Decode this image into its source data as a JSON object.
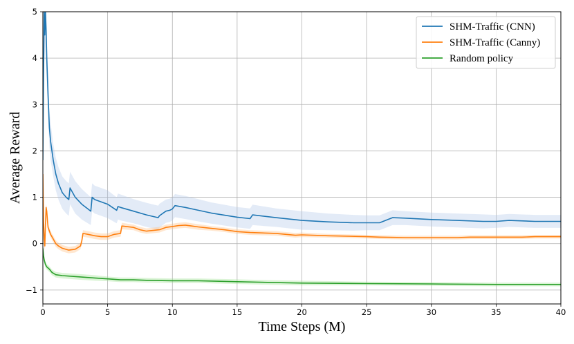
{
  "chart_data": {
    "type": "line",
    "title": "",
    "xlabel": "Time Steps (M)",
    "ylabel": "Average Reward",
    "xlim": [
      0,
      40
    ],
    "ylim": [
      -1.3,
      5
    ],
    "xticks": [
      0,
      5,
      10,
      15,
      20,
      25,
      30,
      35,
      40
    ],
    "yticks": [
      -1,
      0,
      1,
      2,
      3,
      4,
      5
    ],
    "grid": true,
    "legend_position": "top-right",
    "series": [
      {
        "name": "SHM-Traffic (CNN)",
        "color": "#1f77b4",
        "band_color": "#aec7e8",
        "x": [
          0.0,
          0.05,
          0.1,
          0.15,
          0.2,
          0.25,
          0.3,
          0.4,
          0.5,
          0.6,
          0.8,
          1.0,
          1.2,
          1.5,
          1.8,
          2.0,
          2.1,
          2.5,
          3.0,
          3.7,
          3.8,
          4.0,
          5.0,
          5.7,
          5.8,
          6.0,
          7.0,
          8.0,
          8.9,
          9.0,
          9.5,
          9.8,
          10.0,
          10.2,
          11.0,
          12.0,
          13.0,
          15.0,
          16.0,
          16.2,
          18.0,
          20.0,
          22.0,
          24.0,
          25.0,
          26.0,
          27.0,
          28.0,
          30.0,
          32.0,
          34.0,
          35.0,
          36.0,
          38.0,
          40.0
        ],
        "y": [
          1.8,
          3.5,
          5.0,
          4.5,
          5.0,
          4.6,
          4.0,
          3.2,
          2.5,
          2.2,
          1.8,
          1.5,
          1.3,
          1.1,
          1.0,
          0.95,
          1.2,
          1.0,
          0.85,
          0.7,
          1.0,
          0.95,
          0.85,
          0.72,
          0.8,
          0.78,
          0.7,
          0.62,
          0.56,
          0.6,
          0.7,
          0.72,
          0.75,
          0.82,
          0.78,
          0.72,
          0.66,
          0.57,
          0.54,
          0.62,
          0.56,
          0.5,
          0.47,
          0.45,
          0.45,
          0.45,
          0.56,
          0.55,
          0.52,
          0.5,
          0.48,
          0.48,
          0.5,
          0.48,
          0.48
        ],
        "band_halfwidth": [
          0.3,
          0.5,
          0.6,
          0.6,
          0.6,
          0.6,
          0.5,
          0.5,
          0.4,
          0.4,
          0.35,
          0.35,
          0.35,
          0.35,
          0.35,
          0.35,
          0.35,
          0.35,
          0.33,
          0.3,
          0.3,
          0.3,
          0.3,
          0.28,
          0.28,
          0.28,
          0.26,
          0.26,
          0.26,
          0.26,
          0.25,
          0.25,
          0.25,
          0.25,
          0.25,
          0.24,
          0.23,
          0.22,
          0.22,
          0.22,
          0.2,
          0.2,
          0.18,
          0.17,
          0.16,
          0.16,
          0.16,
          0.15,
          0.15,
          0.15,
          0.15,
          0.14,
          0.14,
          0.14,
          0.14
        ]
      },
      {
        "name": "SHM-Traffic (Canny)",
        "color": "#ff7f0e",
        "band_color": "#ffbb78",
        "x": [
          0.0,
          0.05,
          0.1,
          0.15,
          0.2,
          0.25,
          0.3,
          0.35,
          0.4,
          0.6,
          0.8,
          1.0,
          1.2,
          1.5,
          2.0,
          2.5,
          2.9,
          3.0,
          3.1,
          3.5,
          4.0,
          4.5,
          5.0,
          5.5,
          6.0,
          6.1,
          7.0,
          7.5,
          8.0,
          9.0,
          9.5,
          10.0,
          10.5,
          11.0,
          11.5,
          12.0,
          13.0,
          14.0,
          15.0,
          16.0,
          18.0,
          19.5,
          20.0,
          22.0,
          25.0,
          26.0,
          28.0,
          30.0,
          32.0,
          33.0,
          35.0,
          37.0,
          38.0,
          40.0
        ],
        "y": [
          1.5,
          0.5,
          0.1,
          -0.05,
          0.4,
          0.78,
          0.7,
          0.5,
          0.35,
          0.2,
          0.1,
          0.0,
          -0.05,
          -0.1,
          -0.14,
          -0.12,
          -0.05,
          0.05,
          0.22,
          0.2,
          0.17,
          0.15,
          0.15,
          0.2,
          0.22,
          0.38,
          0.35,
          0.3,
          0.27,
          0.3,
          0.35,
          0.37,
          0.39,
          0.4,
          0.38,
          0.36,
          0.33,
          0.3,
          0.26,
          0.24,
          0.22,
          0.18,
          0.19,
          0.17,
          0.15,
          0.14,
          0.13,
          0.13,
          0.13,
          0.14,
          0.14,
          0.14,
          0.15,
          0.15
        ],
        "band_halfwidth": [
          0.3,
          0.2,
          0.15,
          0.1,
          0.1,
          0.08,
          0.08,
          0.08,
          0.08,
          0.07,
          0.07,
          0.07,
          0.07,
          0.07,
          0.07,
          0.07,
          0.07,
          0.07,
          0.07,
          0.07,
          0.07,
          0.07,
          0.07,
          0.07,
          0.07,
          0.07,
          0.06,
          0.06,
          0.06,
          0.06,
          0.06,
          0.06,
          0.06,
          0.06,
          0.06,
          0.06,
          0.05,
          0.05,
          0.05,
          0.05,
          0.05,
          0.05,
          0.05,
          0.04,
          0.04,
          0.04,
          0.04,
          0.04,
          0.04,
          0.04,
          0.04,
          0.04,
          0.04,
          0.04
        ]
      },
      {
        "name": "Random policy",
        "color": "#2ca02c",
        "band_color": "#98df8a",
        "x": [
          0.0,
          0.05,
          0.1,
          0.2,
          0.3,
          0.5,
          0.7,
          1.0,
          1.5,
          2.0,
          3.0,
          4.0,
          5.0,
          6.0,
          7.0,
          8.0,
          10.0,
          12.0,
          15.0,
          18.0,
          20.0,
          25.0,
          30.0,
          35.0,
          40.0
        ],
        "y": [
          -0.1,
          -0.25,
          -0.35,
          -0.45,
          -0.5,
          -0.55,
          -0.62,
          -0.67,
          -0.69,
          -0.7,
          -0.72,
          -0.74,
          -0.76,
          -0.78,
          -0.78,
          -0.79,
          -0.8,
          -0.8,
          -0.82,
          -0.84,
          -0.85,
          -0.86,
          -0.87,
          -0.88,
          -0.88
        ],
        "band_halfwidth": [
          0.05,
          0.05,
          0.06,
          0.06,
          0.06,
          0.06,
          0.06,
          0.06,
          0.06,
          0.06,
          0.06,
          0.06,
          0.05,
          0.05,
          0.05,
          0.05,
          0.05,
          0.05,
          0.05,
          0.05,
          0.05,
          0.04,
          0.04,
          0.04,
          0.04
        ]
      }
    ]
  }
}
